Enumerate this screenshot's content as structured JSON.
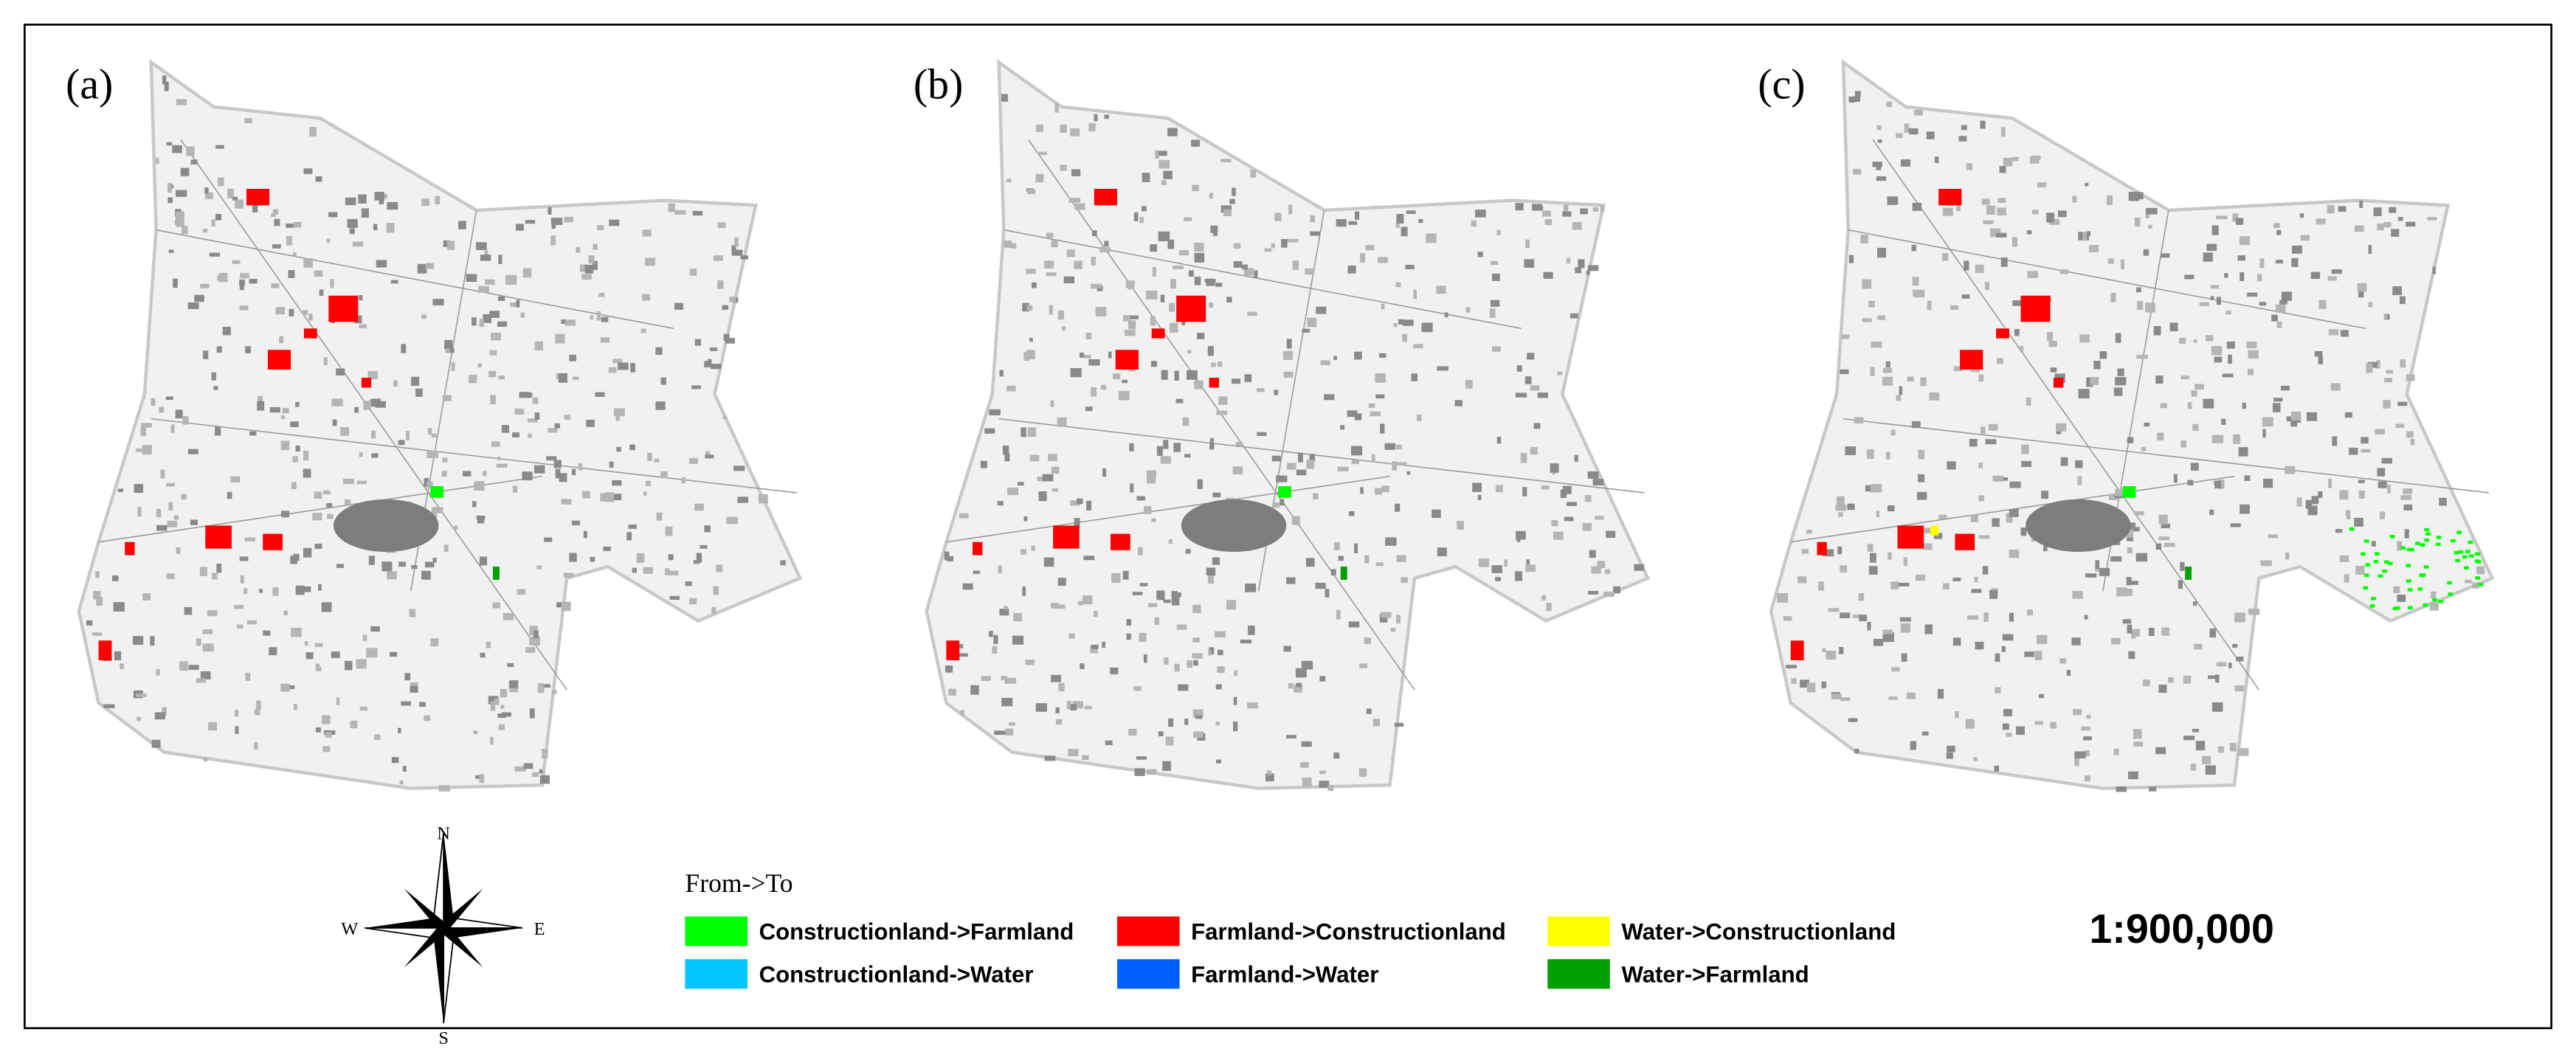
{
  "panels": [
    {
      "label": "(a)"
    },
    {
      "label": "(b)"
    },
    {
      "label": "(c)"
    }
  ],
  "compass": {
    "north": "N",
    "east": "E",
    "south": "S",
    "west": "W"
  },
  "legend": {
    "title": "From->To",
    "items": [
      {
        "label": "Constructionland->Farmland",
        "color": "#00ff00"
      },
      {
        "label": "Farmland->Constructionland",
        "color": "#ff0000"
      },
      {
        "label": "Water->Constructionland",
        "color": "#ffff00"
      },
      {
        "label": "Constructionland->Water",
        "color": "#00c5ff"
      },
      {
        "label": "Farmland->Water",
        "color": "#0060ff"
      },
      {
        "label": "Water->Farmland",
        "color": "#00a000"
      }
    ]
  },
  "scale": "1:900,000"
}
